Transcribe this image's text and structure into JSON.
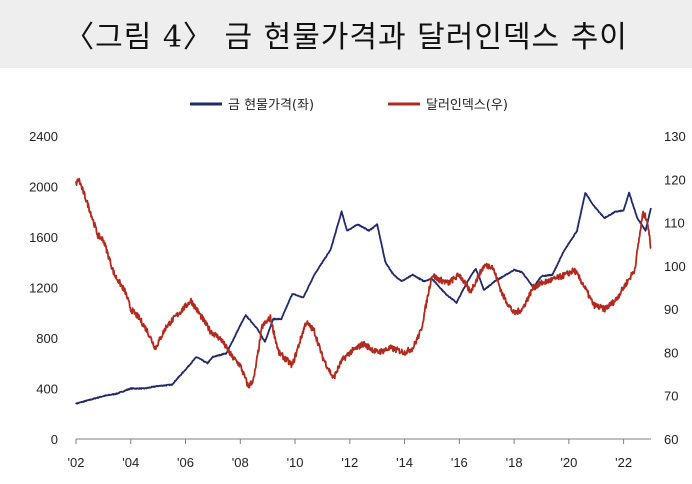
{
  "title": "〈그림 4〉 금 현물가격과 달러인덱스 추이",
  "chart_data": {
    "type": "line",
    "title": "〈그림 4〉 금 현물가격과 달러인덱스 추이",
    "legend_position": "top-center",
    "grid": false,
    "x_ticks": [
      "'02",
      "'04",
      "'06",
      "'08",
      "'10",
      "'12",
      "'14",
      "'16",
      "'18",
      "'20",
      "'22"
    ],
    "x_range": [
      2002.0,
      2023.0
    ],
    "y_left": {
      "range": [
        0,
        2400
      ],
      "ticks": [
        "0",
        "400",
        "800",
        "1200",
        "1600",
        "2000",
        "2400"
      ]
    },
    "y_right": {
      "range": [
        60,
        130
      ],
      "ticks": [
        "60",
        "70",
        "80",
        "90",
        "100",
        "110",
        "120",
        "130"
      ]
    },
    "series": [
      {
        "name": "금 현물가격(좌)",
        "axis": "left",
        "color": "#1f2a6b",
        "x": [
          2002.0,
          2002.5,
          2003.0,
          2003.5,
          2004.0,
          2004.5,
          2005.0,
          2005.5,
          2006.0,
          2006.4,
          2006.8,
          2007.0,
          2007.5,
          2008.0,
          2008.2,
          2008.6,
          2008.9,
          2009.2,
          2009.5,
          2009.9,
          2010.3,
          2010.7,
          2011.0,
          2011.3,
          2011.7,
          2011.9,
          2012.3,
          2012.7,
          2013.0,
          2013.3,
          2013.6,
          2013.9,
          2014.3,
          2014.7,
          2015.0,
          2015.5,
          2015.9,
          2016.3,
          2016.6,
          2016.9,
          2017.3,
          2017.7,
          2018.0,
          2018.3,
          2018.7,
          2019.0,
          2019.4,
          2019.8,
          2020.0,
          2020.3,
          2020.6,
          2020.9,
          2021.3,
          2021.7,
          2022.0,
          2022.2,
          2022.5,
          2022.8,
          2023.0
        ],
        "y": [
          280,
          310,
          340,
          360,
          400,
          400,
          420,
          430,
          550,
          650,
          600,
          650,
          680,
          900,
          980,
          880,
          770,
          950,
          950,
          1150,
          1120,
          1300,
          1400,
          1500,
          1800,
          1650,
          1700,
          1650,
          1700,
          1400,
          1300,
          1250,
          1300,
          1250,
          1270,
          1150,
          1080,
          1250,
          1350,
          1180,
          1250,
          1300,
          1340,
          1320,
          1200,
          1290,
          1300,
          1480,
          1550,
          1650,
          1950,
          1850,
          1750,
          1800,
          1810,
          1950,
          1750,
          1650,
          1830
        ]
      },
      {
        "name": "달러인덱스(우)",
        "axis": "right",
        "color": "#b22a1e",
        "x": [
          2002.0,
          2002.1,
          2002.5,
          2002.8,
          2003.0,
          2003.4,
          2003.8,
          2004.0,
          2004.3,
          2004.6,
          2004.9,
          2005.3,
          2005.6,
          2005.9,
          2006.2,
          2006.5,
          2006.9,
          2007.3,
          2007.7,
          2008.0,
          2008.3,
          2008.5,
          2008.8,
          2009.1,
          2009.4,
          2009.9,
          2010.4,
          2010.7,
          2011.0,
          2011.4,
          2011.7,
          2012.0,
          2012.5,
          2013.0,
          2013.5,
          2014.0,
          2014.3,
          2014.6,
          2015.0,
          2015.2,
          2015.6,
          2016.0,
          2016.4,
          2016.9,
          2017.2,
          2017.6,
          2018.0,
          2018.3,
          2018.7,
          2019.0,
          2019.5,
          2019.9,
          2020.2,
          2020.5,
          2020.9,
          2021.3,
          2021.7,
          2022.0,
          2022.4,
          2022.7,
          2022.85,
          2023.0
        ],
        "y": [
          119,
          120,
          113,
          107,
          106,
          98,
          94,
          90,
          88,
          85,
          81,
          86,
          88,
          90,
          92,
          89,
          85,
          83,
          79,
          77,
          72,
          74,
          86,
          88,
          80,
          77,
          87,
          85,
          79,
          74,
          78,
          80,
          82,
          80,
          81,
          80,
          81,
          85,
          98,
          97,
          96,
          98,
          94,
          100,
          100,
          93,
          89,
          90,
          95,
          96,
          97,
          98,
          99,
          96,
          91,
          90,
          92,
          95,
          99,
          112,
          111,
          104
        ]
      }
    ]
  }
}
